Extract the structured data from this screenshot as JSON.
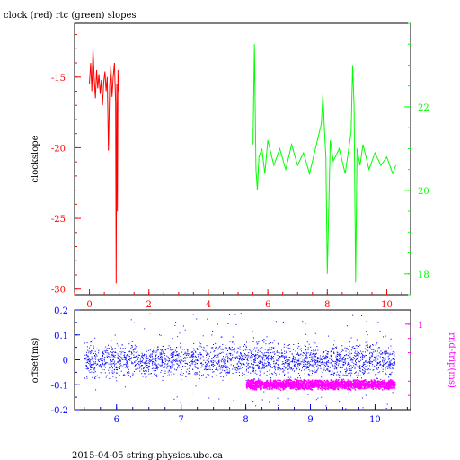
{
  "title": "clock (red) rtc (green) slopes",
  "footer": "2015-04-05  string.physics.ubc.ca",
  "colors": {
    "clock": "#ff0000",
    "rtc": "#00ff00",
    "offset": "#0000ff",
    "rndtrip": "#ff00ff",
    "axes": "#000000"
  },
  "chart_data": [
    {
      "type": "line",
      "ylabel": "clockslope",
      "xlim": [
        -0.5,
        10.8
      ],
      "ylim": [
        -30.4,
        -11.2
      ],
      "x_ticks": [
        0,
        2,
        4,
        6,
        8,
        10
      ],
      "x_tick_labels": [
        "0",
        "2",
        "4",
        "6",
        "8",
        "10"
      ],
      "y_ticks": [
        -15,
        -20,
        -25,
        -30
      ],
      "y_tick_labels": [
        "-15",
        "-20",
        "-25",
        "-30"
      ],
      "y2lim": [
        17.5,
        24.0
      ],
      "y2_ticks": [
        18,
        20,
        22
      ],
      "y2_tick_labels": [
        "18",
        "20",
        "22"
      ],
      "series": [
        {
          "color": "#ff0000",
          "axis": "left",
          "x": [
            0.0,
            0.04,
            0.08,
            0.12,
            0.16,
            0.2,
            0.24,
            0.28,
            0.32,
            0.36,
            0.4,
            0.44,
            0.48,
            0.52,
            0.56,
            0.6,
            0.64,
            0.68,
            0.72,
            0.76,
            0.8,
            0.84,
            0.88,
            0.9,
            0.92,
            0.94,
            0.96,
            0.98,
            1.0
          ],
          "y": [
            -15.5,
            -14.0,
            -16.0,
            -13.0,
            -15.0,
            -16.5,
            -14.5,
            -15.8,
            -14.8,
            -16.2,
            -15.2,
            -17.0,
            -15.4,
            -14.6,
            -16.0,
            -15.0,
            -20.2,
            -15.6,
            -14.2,
            -16.4,
            -15.0,
            -14.0,
            -16.8,
            -29.6,
            -15.5,
            -24.5,
            -14.5,
            -16.0,
            -15.2
          ]
        },
        {
          "color": "#00ff00",
          "axis": "right",
          "x": [
            5.5,
            5.55,
            5.6,
            5.65,
            5.7,
            5.8,
            5.9,
            6.0,
            6.2,
            6.4,
            6.6,
            6.8,
            7.0,
            7.2,
            7.4,
            7.6,
            7.8,
            7.85,
            7.9,
            7.95,
            8.0,
            8.1,
            8.2,
            8.4,
            8.6,
            8.8,
            8.85,
            8.9,
            8.95,
            9.0,
            9.1,
            9.2,
            9.4,
            9.6,
            9.8,
            10.0,
            10.2,
            10.3
          ],
          "y": [
            21.1,
            23.5,
            20.5,
            20.0,
            20.8,
            21.0,
            20.4,
            21.2,
            20.6,
            21.0,
            20.5,
            21.1,
            20.6,
            20.9,
            20.4,
            21.0,
            21.6,
            22.3,
            21.5,
            20.8,
            18.0,
            21.2,
            20.7,
            21.0,
            20.4,
            21.4,
            23.0,
            22.0,
            17.8,
            21.0,
            20.6,
            21.1,
            20.5,
            20.9,
            20.6,
            20.8,
            20.4,
            20.6
          ]
        }
      ]
    },
    {
      "type": "scatter",
      "ylabel": "offset(ms)",
      "y2label": "rnd-trip(ms)",
      "xlim": [
        5.35,
        10.55
      ],
      "ylim": [
        -0.2,
        0.2
      ],
      "x_ticks": [
        6,
        7,
        8,
        9,
        10
      ],
      "x_tick_labels": [
        "6",
        "7",
        "8",
        "9",
        "10"
      ],
      "y_ticks": [
        0.2,
        0.1,
        0,
        -0.1,
        -0.2
      ],
      "y_tick_labels": [
        "0.2",
        "0.1",
        "0",
        "-0.1",
        "-0.2"
      ],
      "y2lim": [
        0.7,
        1.05
      ],
      "y2_ticks": [
        1
      ],
      "y2_tick_labels": [
        "1"
      ],
      "series": [
        {
          "color": "#0000ff",
          "axis": "left",
          "x_range": [
            5.5,
            10.3
          ],
          "center": 0.0,
          "spread": 0.04
        },
        {
          "color": "#ff00ff",
          "axis": "right",
          "x_range": [
            8.0,
            10.3
          ],
          "center": 0.79,
          "spread": 0.012
        }
      ]
    }
  ]
}
